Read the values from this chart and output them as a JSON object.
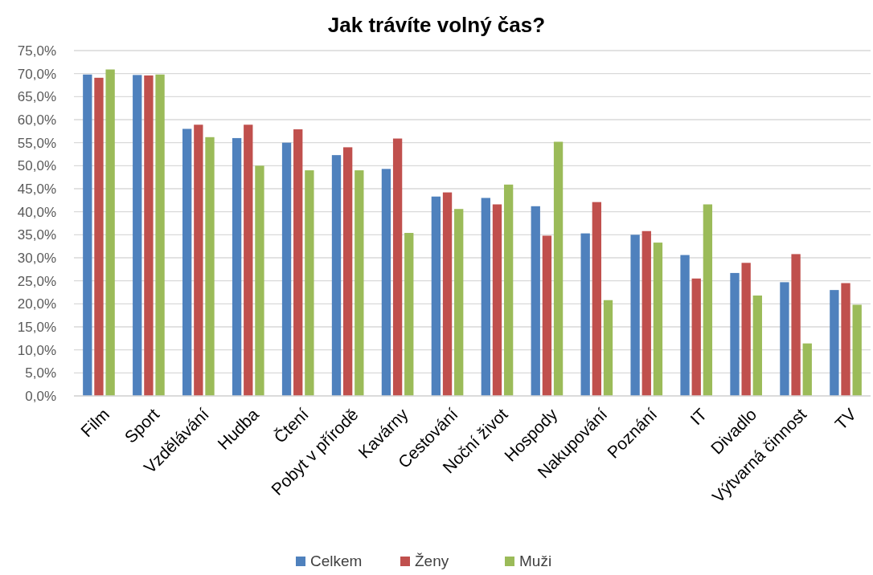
{
  "chart_data": {
    "type": "bar",
    "title": "Jak trávíte volný čas?",
    "categories": [
      "Film",
      "Sport",
      "Vzdělávání",
      "Hudba",
      "Čtení",
      "Pobyt v přírodě",
      "Kavárny",
      "Cestování",
      "Noční život",
      "Hospody",
      "Nakupování",
      "Poznání",
      "IT",
      "Divadlo",
      "Výtvarná činnost",
      "TV"
    ],
    "series": [
      {
        "name": "Celkem",
        "color": "#4f81bd",
        "values": [
          69.8,
          69.7,
          58.0,
          56.0,
          55.0,
          52.3,
          49.3,
          43.3,
          43.0,
          41.2,
          35.3,
          35.0,
          30.6,
          26.7,
          24.7,
          23.0
        ]
      },
      {
        "name": "Ženy",
        "color": "#c0504d",
        "values": [
          69.1,
          69.6,
          58.9,
          58.9,
          57.9,
          54.0,
          55.9,
          44.2,
          41.6,
          34.8,
          42.1,
          35.8,
          25.5,
          28.9,
          30.8,
          24.5
        ]
      },
      {
        "name": "Muži",
        "color": "#9bbb59",
        "values": [
          70.9,
          69.8,
          56.2,
          50.0,
          49.0,
          49.0,
          35.4,
          40.6,
          45.9,
          55.2,
          20.8,
          33.3,
          41.6,
          21.8,
          11.4,
          19.8
        ]
      }
    ],
    "ylim": [
      0,
      75
    ],
    "yticks": [
      {
        "value": 0,
        "label": "0,0%"
      },
      {
        "value": 5,
        "label": "5,0%"
      },
      {
        "value": 10,
        "label": "10,0%"
      },
      {
        "value": 15,
        "label": "15,0%"
      },
      {
        "value": 20,
        "label": "20,0%"
      },
      {
        "value": 25,
        "label": "25,0%"
      },
      {
        "value": 30,
        "label": "30,0%"
      },
      {
        "value": 35,
        "label": "35,0%"
      },
      {
        "value": 40,
        "label": "40,0%"
      },
      {
        "value": 45,
        "label": "45,0%"
      },
      {
        "value": 50,
        "label": "50,0%"
      },
      {
        "value": 55,
        "label": "55,0%"
      },
      {
        "value": 60,
        "label": "60,0%"
      },
      {
        "value": 65,
        "label": "65,0%"
      },
      {
        "value": 70,
        "label": "70,0%"
      },
      {
        "value": 75,
        "label": "75,0%"
      }
    ],
    "grid": "y",
    "legend": "bottom"
  }
}
